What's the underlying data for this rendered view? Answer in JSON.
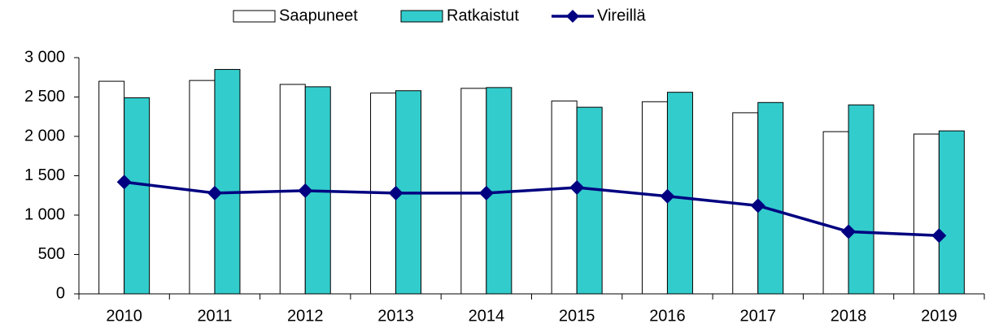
{
  "chart_data": {
    "type": "bar_line",
    "categories": [
      "2010",
      "2011",
      "2012",
      "2013",
      "2014",
      "2015",
      "2016",
      "2017",
      "2018",
      "2019"
    ],
    "series": [
      {
        "name": "Saapuneet",
        "type": "bar",
        "color": "#ffffff",
        "values": [
          2700,
          2710,
          2660,
          2550,
          2610,
          2450,
          2440,
          2300,
          2060,
          2030
        ]
      },
      {
        "name": "Ratkaistut",
        "type": "bar",
        "color": "#33cccc",
        "values": [
          2490,
          2850,
          2630,
          2580,
          2620,
          2370,
          2560,
          2430,
          2400,
          2070
        ]
      },
      {
        "name": "Vireillä",
        "type": "line",
        "color": "#000080",
        "values": [
          1420,
          1280,
          1310,
          1280,
          1280,
          1350,
          1240,
          1120,
          790,
          740
        ]
      }
    ],
    "ylim": [
      0,
      3000
    ],
    "yticks": [
      0,
      500,
      {
        "value": 1000,
        "label": "1 000"
      },
      {
        "value": 1500,
        "label": "1 500"
      },
      {
        "value": 2000,
        "label": "2 000"
      },
      {
        "value": 2500,
        "label": "2 500"
      },
      {
        "value": 3000,
        "label": "3 000"
      }
    ],
    "legend": "top"
  }
}
